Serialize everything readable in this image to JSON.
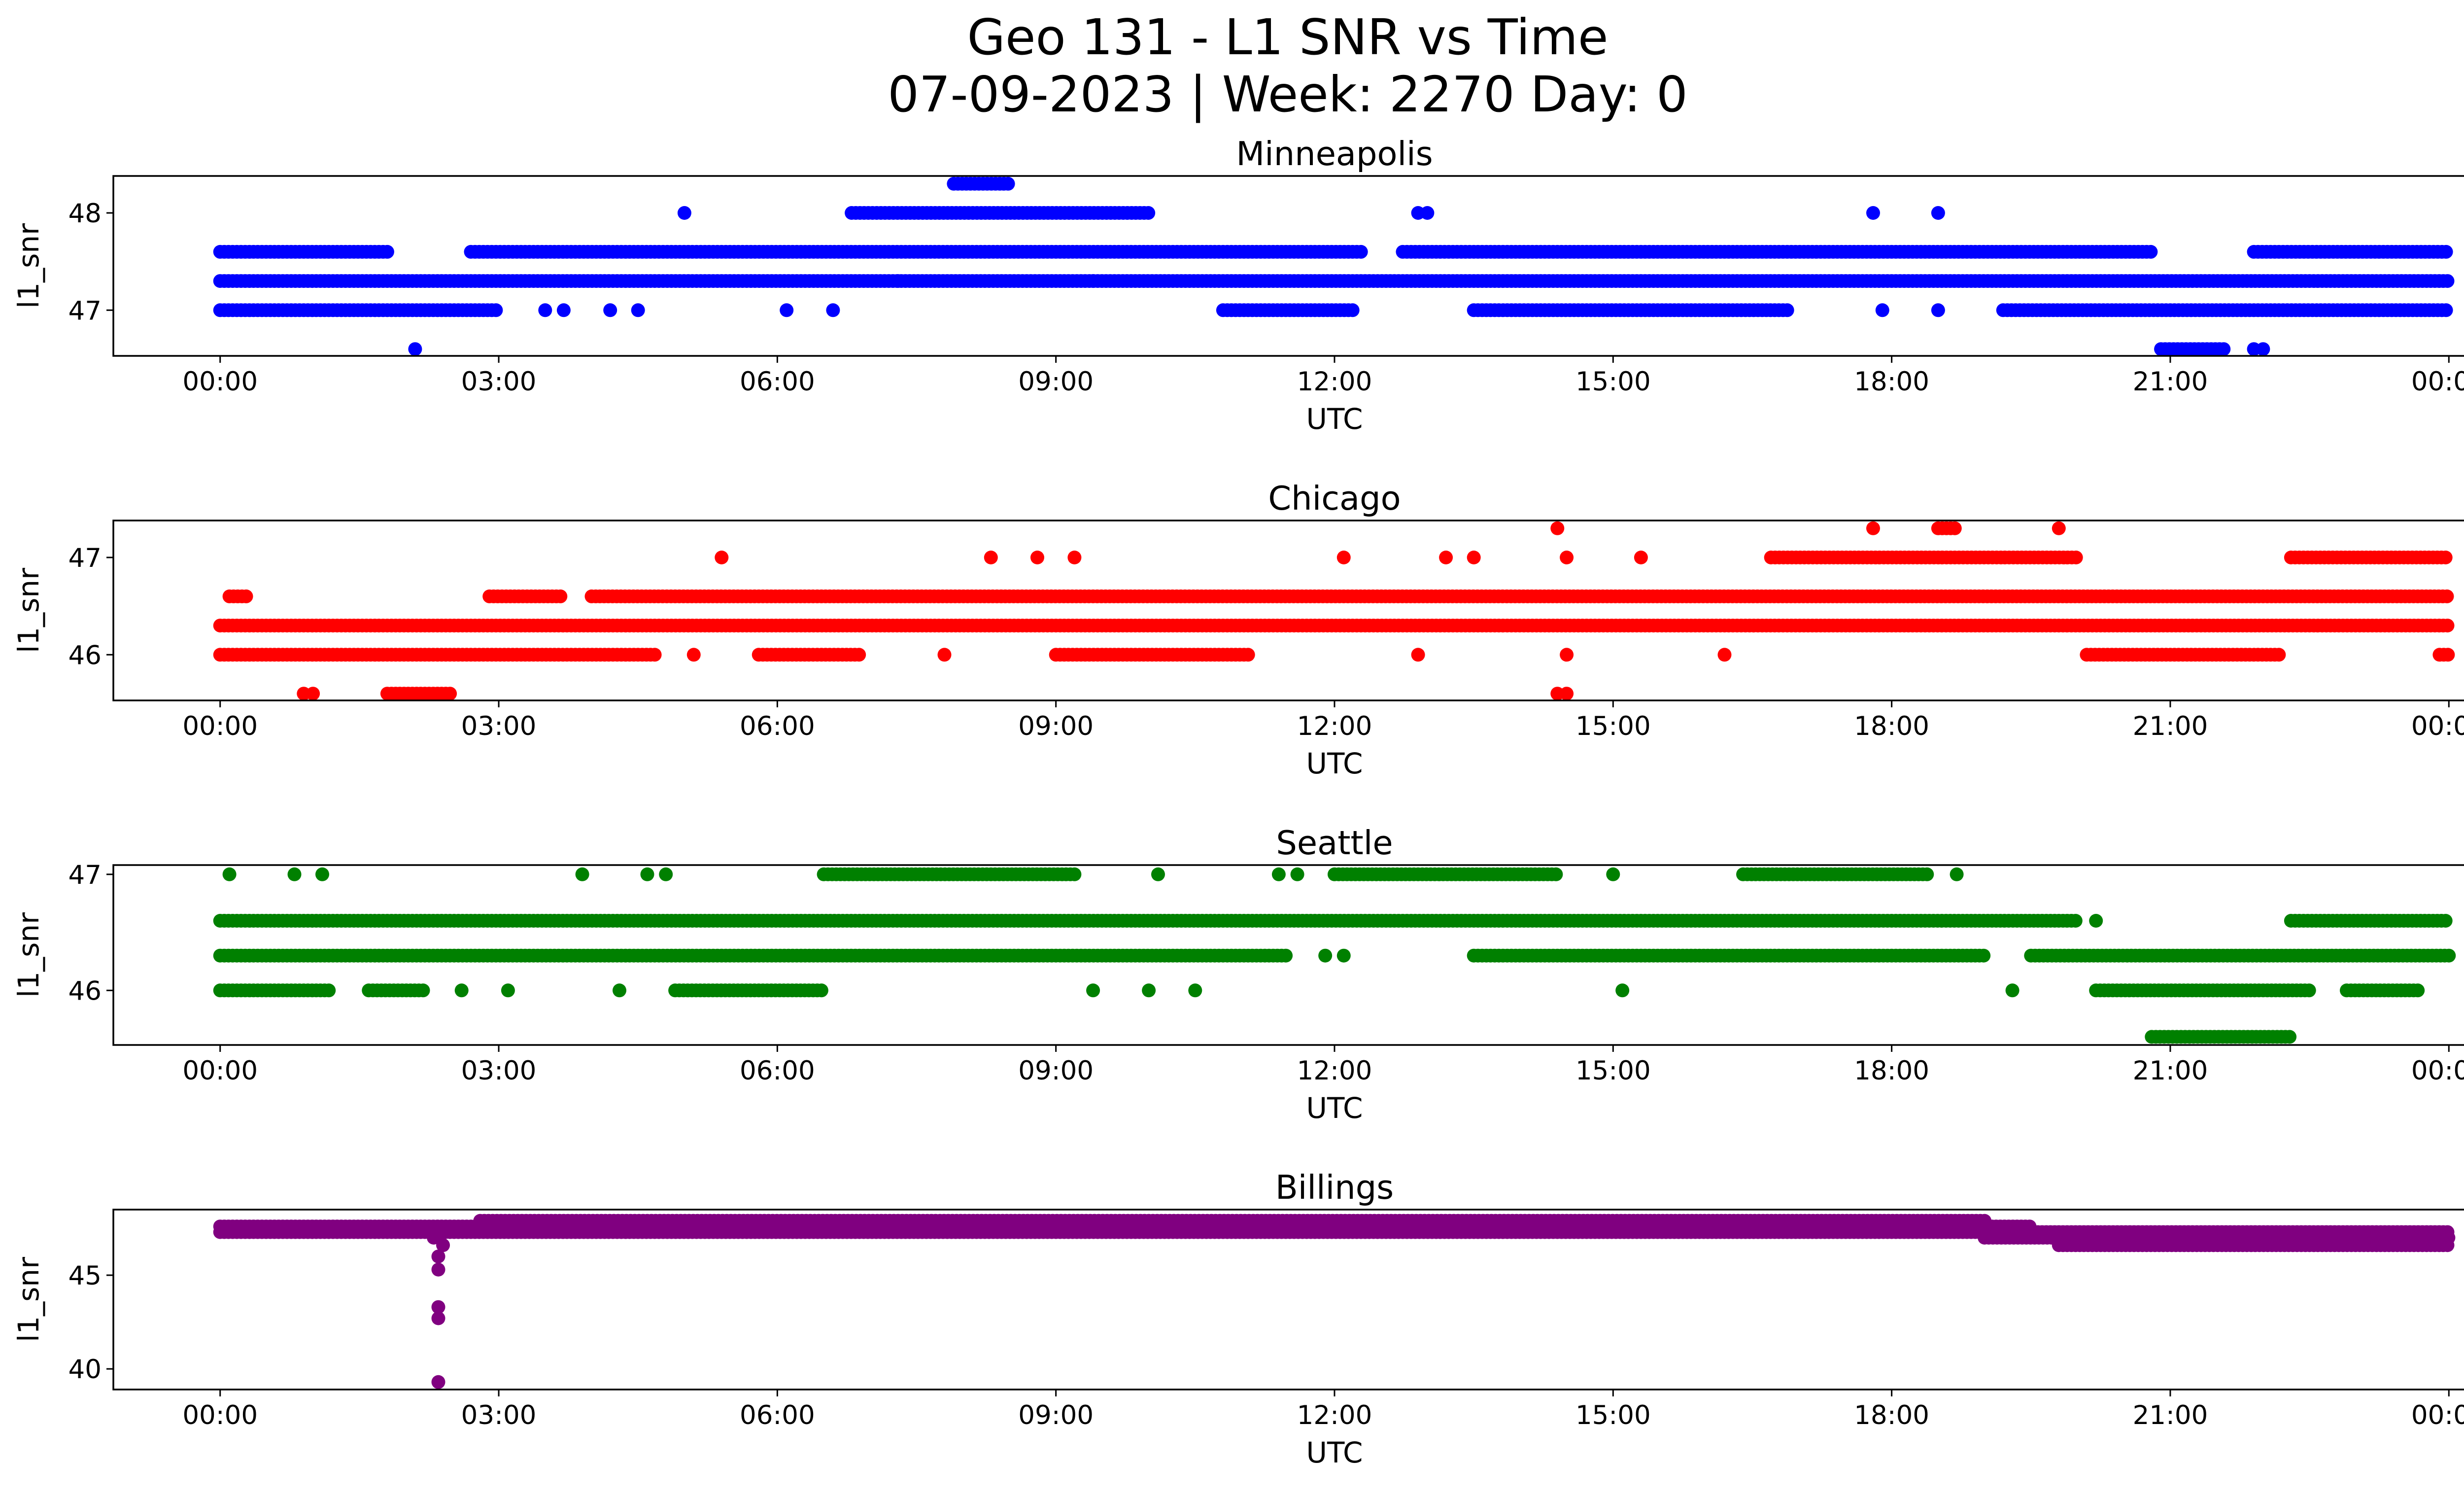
{
  "chart_data": {
    "type": "scatter",
    "title": "Geo 131 - L1 SNR vs Time\n07-09-2023 | Week: 2270 Day: 0",
    "xlabel": "UTC",
    "ylabel": "l1_snr",
    "x_ticks": [
      "00:00",
      "03:00",
      "06:00",
      "09:00",
      "12:00",
      "15:00",
      "18:00",
      "21:00",
      "00:00"
    ],
    "x_range_hours": [
      -1.15,
      25.15
    ],
    "legend": "none",
    "grid": false,
    "subplots": [
      {
        "name": "Minneapolis",
        "color": "#0000ff",
        "ylim": [
          46.53,
          48.38
        ],
        "yticks": [
          47,
          48
        ],
        "series": [
          {
            "y": 47.3,
            "segments": [
              [
                0.0,
                24.0
              ]
            ]
          },
          {
            "y": 47.6,
            "segments": [
              [
                0.0,
                1.8
              ],
              [
                2.7,
                20.8
              ],
              [
                21.9,
                24.0
              ]
            ],
            "gaps": [
              [
                12.3,
                12.7
              ]
            ]
          },
          {
            "y": 47.0,
            "segments": [
              [
                0.0,
                3.0
              ],
              [
                10.8,
                12.2
              ],
              [
                13.5,
                16.9
              ],
              [
                19.2,
                24.0
              ]
            ]
          },
          {
            "y": 48.0,
            "segments": [
              [
                6.8,
                10.0
              ]
            ]
          },
          {
            "y": 48.3,
            "segments": [
              [
                7.9,
                8.5
              ]
            ]
          },
          {
            "y": 46.6,
            "segments": [
              [
                20.9,
                21.6
              ]
            ]
          }
        ],
        "points": [
          [
            2.1,
            46.6
          ],
          [
            21.9,
            46.6
          ],
          [
            22.0,
            46.6
          ],
          [
            5.0,
            48.0
          ],
          [
            12.9,
            48.0
          ],
          [
            13.0,
            48.0
          ],
          [
            17.8,
            48.0
          ],
          [
            18.5,
            48.0
          ],
          [
            3.5,
            47.0
          ],
          [
            3.7,
            47.0
          ],
          [
            4.2,
            47.0
          ],
          [
            4.5,
            47.0
          ],
          [
            6.1,
            47.0
          ],
          [
            6.6,
            47.0
          ],
          [
            17.9,
            47.0
          ],
          [
            18.5,
            47.0
          ],
          [
            9.4,
            47.3
          ],
          [
            7.3,
            47.3
          ]
        ]
      },
      {
        "name": "Chicago",
        "color": "#ff0000",
        "ylim": [
          45.53,
          47.38
        ],
        "yticks": [
          46,
          47
        ],
        "series": [
          {
            "y": 46.3,
            "segments": [
              [
                0.0,
                24.0
              ]
            ]
          },
          {
            "y": 46.0,
            "segments": [
              [
                0.0,
                4.7
              ],
              [
                5.8,
                6.9
              ],
              [
                9.0,
                11.1
              ],
              [
                20.1,
                22.2
              ],
              [
                23.9,
                24.0
              ]
            ]
          },
          {
            "y": 46.6,
            "segments": [
              [
                0.1,
                0.3
              ],
              [
                2.9,
                3.7
              ],
              [
                4.0,
                24.0
              ]
            ]
          },
          {
            "y": 47.0,
            "segments": [
              [
                16.7,
                20.0
              ],
              [
                22.3,
                24.0
              ]
            ]
          },
          {
            "y": 45.6,
            "segments": [
              [
                1.8,
                2.5
              ]
            ]
          },
          {
            "y": 47.3,
            "segments": [
              [
                18.5,
                18.7
              ]
            ]
          }
        ],
        "points": [
          [
            0.9,
            45.6
          ],
          [
            1.0,
            45.6
          ],
          [
            14.4,
            45.6
          ],
          [
            14.5,
            45.6
          ],
          [
            14.4,
            47.3
          ],
          [
            17.8,
            47.3
          ],
          [
            19.8,
            47.3
          ],
          [
            5.4,
            47.0
          ],
          [
            8.3,
            47.0
          ],
          [
            8.8,
            47.0
          ],
          [
            9.2,
            47.0
          ],
          [
            12.1,
            47.0
          ],
          [
            13.2,
            47.0
          ],
          [
            13.5,
            47.0
          ],
          [
            14.5,
            47.0
          ],
          [
            15.3,
            47.0
          ],
          [
            5.1,
            46.0
          ],
          [
            7.8,
            46.0
          ],
          [
            12.9,
            46.0
          ],
          [
            14.5,
            46.0
          ],
          [
            16.2,
            46.0
          ]
        ]
      },
      {
        "name": "Seattle",
        "color": "#008000",
        "ylim": [
          45.53,
          47.08
        ],
        "yticks": [
          46,
          47
        ],
        "series": [
          {
            "y": 46.6,
            "segments": [
              [
                0.0,
                20.0
              ],
              [
                22.3,
                24.0
              ]
            ]
          },
          {
            "y": 46.3,
            "segments": [
              [
                0.0,
                11.5
              ],
              [
                13.5,
                19.0
              ],
              [
                19.5,
                24.0
              ]
            ]
          },
          {
            "y": 46.0,
            "segments": [
              [
                0.0,
                1.2
              ],
              [
                1.6,
                2.2
              ],
              [
                4.9,
                6.5
              ],
              [
                20.2,
                22.5
              ],
              [
                22.9,
                23.7
              ]
            ]
          },
          {
            "y": 47.0,
            "segments": [
              [
                6.5,
                9.2
              ],
              [
                12.0,
                14.4
              ],
              [
                16.4,
                18.4
              ]
            ]
          },
          {
            "y": 45.6,
            "segments": [
              [
                20.8,
                22.3
              ]
            ]
          }
        ],
        "points": [
          [
            0.1,
            47.0
          ],
          [
            0.8,
            47.0
          ],
          [
            1.1,
            47.0
          ],
          [
            3.9,
            47.0
          ],
          [
            4.6,
            47.0
          ],
          [
            4.8,
            47.0
          ],
          [
            10.1,
            47.0
          ],
          [
            11.4,
            47.0
          ],
          [
            11.6,
            47.0
          ],
          [
            15.0,
            47.0
          ],
          [
            18.7,
            47.0
          ],
          [
            2.6,
            46.0
          ],
          [
            3.1,
            46.0
          ],
          [
            4.3,
            46.0
          ],
          [
            9.4,
            46.0
          ],
          [
            10.0,
            46.0
          ],
          [
            10.5,
            46.0
          ],
          [
            15.1,
            46.0
          ],
          [
            19.3,
            46.0
          ],
          [
            11.9,
            46.3
          ],
          [
            12.1,
            46.3
          ],
          [
            20.2,
            46.6
          ]
        ]
      },
      {
        "name": "Billings",
        "color": "#800080",
        "ylim": [
          38.9,
          48.5
        ],
        "yticks": [
          40,
          45
        ],
        "series": [
          {
            "y": 47.3,
            "segments": [
              [
                0.0,
                24.0
              ]
            ]
          },
          {
            "y": 47.6,
            "segments": [
              [
                0.0,
                19.5
              ]
            ]
          },
          {
            "y": 47.9,
            "segments": [
              [
                2.8,
                19.0
              ]
            ]
          },
          {
            "y": 47.0,
            "segments": [
              [
                19.0,
                24.0
              ]
            ]
          },
          {
            "y": 46.6,
            "segments": [
              [
                19.8,
                24.0
              ]
            ]
          }
        ],
        "points": [
          [
            2.35,
            46.0
          ],
          [
            2.35,
            45.3
          ],
          [
            2.35,
            43.3
          ],
          [
            2.35,
            42.7
          ],
          [
            2.35,
            39.3
          ],
          [
            2.4,
            46.6
          ],
          [
            2.3,
            47.0
          ]
        ]
      }
    ]
  }
}
